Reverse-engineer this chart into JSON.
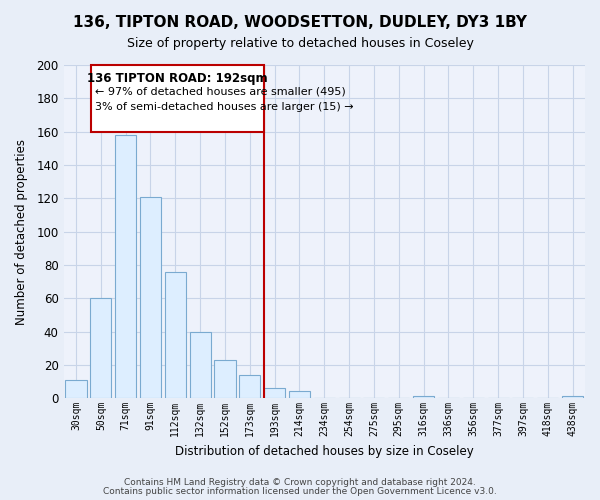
{
  "title": "136, TIPTON ROAD, WOODSETTON, DUDLEY, DY3 1BY",
  "subtitle": "Size of property relative to detached houses in Coseley",
  "xlabel": "Distribution of detached houses by size in Coseley",
  "ylabel": "Number of detached properties",
  "bar_labels": [
    "30sqm",
    "50sqm",
    "71sqm",
    "91sqm",
    "112sqm",
    "132sqm",
    "152sqm",
    "173sqm",
    "193sqm",
    "214sqm",
    "234sqm",
    "254sqm",
    "275sqm",
    "295sqm",
    "316sqm",
    "336sqm",
    "356sqm",
    "377sqm",
    "397sqm",
    "418sqm",
    "438sqm"
  ],
  "bar_values": [
    11,
    60,
    158,
    121,
    76,
    40,
    23,
    14,
    6,
    4,
    0,
    0,
    0,
    0,
    1,
    0,
    0,
    0,
    0,
    0,
    1
  ],
  "bar_color": "#ddeeff",
  "bar_edge_color": "#7aaad0",
  "vline_index": 8,
  "vline_color": "#bb0000",
  "annotation_title": "136 TIPTON ROAD: 192sqm",
  "annotation_line1": "← 97% of detached houses are smaller (495)",
  "annotation_line2": "3% of semi-detached houses are larger (15) →",
  "annotation_box_color": "#ffffff",
  "annotation_box_edge": "#bb0000",
  "ylim": [
    0,
    200
  ],
  "yticks": [
    0,
    20,
    40,
    60,
    80,
    100,
    120,
    140,
    160,
    180,
    200
  ],
  "footer1": "Contains HM Land Registry data © Crown copyright and database right 2024.",
  "footer2": "Contains public sector information licensed under the Open Government Licence v3.0.",
  "bg_color": "#e8eef8",
  "plot_bg_color": "#eef2fb",
  "grid_color": "#c8d4e8"
}
